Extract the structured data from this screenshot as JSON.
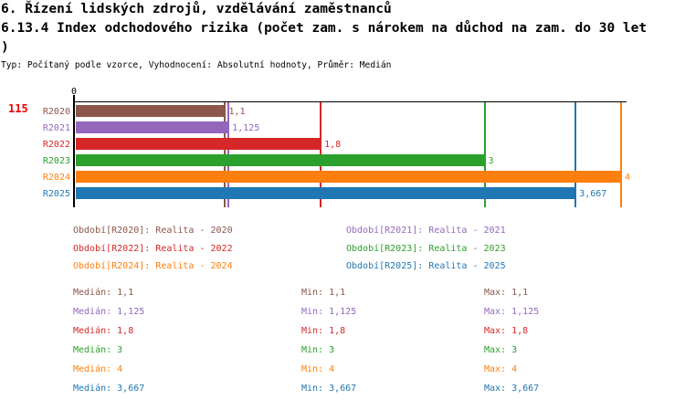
{
  "page": {
    "title_line1": "6. Řízení lidských zdrojů, vzdělávání zaměstnanců",
    "title_line2": "6.13.4 Index odchodového rizika (počet zam. s nárokem na důchod na zam. do 30 let",
    "title_line3": ")",
    "meta_line": "Typ: Počítaný podle vzorce, Vyhodnocení: Absolutní hodnoty, Průměr: Medián"
  },
  "chart_data": {
    "type": "bar",
    "orientation": "horizontal",
    "title": "6.13.4 Index odchodového rizika (počet zam. s nárokem na důchod na zam. do 30 let)",
    "xlabel": "",
    "ylabel": "",
    "xlim": [
      0,
      4
    ],
    "axis_origin_label": "0",
    "left_outer_label": "115",
    "grid": false,
    "legend_position": "below-two-columns",
    "categories": [
      "R2020",
      "R2021",
      "R2022",
      "R2023",
      "R2024",
      "R2025"
    ],
    "values": [
      1.1,
      1.125,
      1.8,
      3,
      4,
      3.667
    ],
    "series": [
      {
        "id": "R2020",
        "color": "#8c564b",
        "value": 1.1,
        "value_label": "1,1",
        "legend": "Období[R2020]: Realita - 2020",
        "median": "1,1",
        "min": "1,1",
        "max": "1,1"
      },
      {
        "id": "R2021",
        "color": "#9467bd",
        "value": 1.125,
        "value_label": "1,125",
        "legend": "Období[R2021]: Realita - 2021",
        "median": "1,125",
        "min": "1,125",
        "max": "1,125"
      },
      {
        "id": "R2022",
        "color": "#d62728",
        "value": 1.8,
        "value_label": "1,8",
        "legend": "Období[R2022]: Realita - 2022",
        "median": "1,8",
        "min": "1,8",
        "max": "1,8"
      },
      {
        "id": "R2023",
        "color": "#2ca02c",
        "value": 3,
        "value_label": "3",
        "legend": "Období[R2023]: Realita - 2023",
        "median": "3",
        "min": "3",
        "max": "3"
      },
      {
        "id": "R2024",
        "color": "#ff7f0e",
        "value": 4,
        "value_label": "4",
        "legend": "Období[R2024]: Realita - 2024",
        "median": "4",
        "min": "4",
        "max": "4"
      },
      {
        "id": "R2025",
        "color": "#1f77b4",
        "value": 3.667,
        "value_label": "3,667",
        "legend": "Období[R2025]: Realita - 2025",
        "median": "3,667",
        "min": "3,667",
        "max": "3,667"
      }
    ],
    "stats_prefixes": {
      "median": "Medián:",
      "min": "Min:",
      "max": "Max:"
    },
    "colors": {
      "axis": "#000000",
      "row_count_red": "#ee0000",
      "brown": "#8c564b",
      "purple": "#9467bd",
      "red": "#d62728",
      "green": "#2ca02c",
      "orange": "#ff7f0e",
      "blue": "#1f77b4"
    }
  }
}
